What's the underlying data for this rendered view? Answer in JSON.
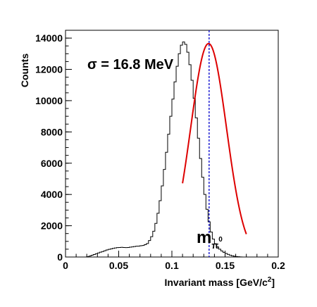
{
  "chart_data": {
    "type": "histogram",
    "title": "",
    "xlabel_main": "Invariant mass [GeV/c",
    "xlabel_sup": "2",
    "xlabel_tail": "]",
    "ylabel": "Counts",
    "xlim": [
      0,
      0.2
    ],
    "ylim": [
      0,
      14500
    ],
    "x_ticks": [
      0,
      0.05,
      0.1,
      0.15,
      0.2
    ],
    "x_tick_labels": [
      "0",
      "0.05",
      "0.1",
      "0.15",
      "0.2"
    ],
    "y_ticks": [
      0,
      2000,
      4000,
      6000,
      8000,
      10000,
      12000,
      14000
    ],
    "y_tick_labels": [
      "0",
      "2000",
      "4000",
      "6000",
      "8000",
      "10000",
      "12000",
      "14000"
    ],
    "grid": false,
    "annotation": "σ = 16.8 MeV",
    "marker_label": "m",
    "marker_label_sub": "π",
    "marker_label_sup": "0",
    "marker_x": 0.135,
    "hist_color": "#000000",
    "fit_color": "#dd0000",
    "marker_color": "#0000cc",
    "fit": {
      "amplitude": 13650,
      "mean": 0.1345,
      "sigma": 0.0168,
      "range": [
        0.11,
        0.17
      ]
    },
    "histogram": {
      "bin_width": 0.002,
      "edges_start": 0.02,
      "counts": [
        20,
        60,
        110,
        160,
        210,
        260,
        310,
        350,
        400,
        450,
        490,
        520,
        550,
        580,
        600,
        610,
        620,
        610,
        600,
        610,
        630,
        650,
        670,
        690,
        700,
        720,
        740,
        790,
        860,
        1050,
        1300,
        1650,
        2150,
        2800,
        3600,
        4550,
        5600,
        6700,
        7850,
        9000,
        10100,
        11200,
        12200,
        13000,
        13550,
        13750,
        13600,
        13100,
        12300,
        11300,
        10150,
        8900,
        7600,
        6300,
        5100,
        4000,
        3050,
        2250,
        1600,
        1150,
        850,
        650,
        500,
        390,
        300,
        230,
        170,
        120,
        80,
        50,
        30,
        15,
        5,
        0,
        0,
        0,
        0,
        0,
        0,
        0,
        0,
        0,
        0,
        0,
        0,
        0,
        0,
        0,
        0,
        0
      ]
    }
  }
}
